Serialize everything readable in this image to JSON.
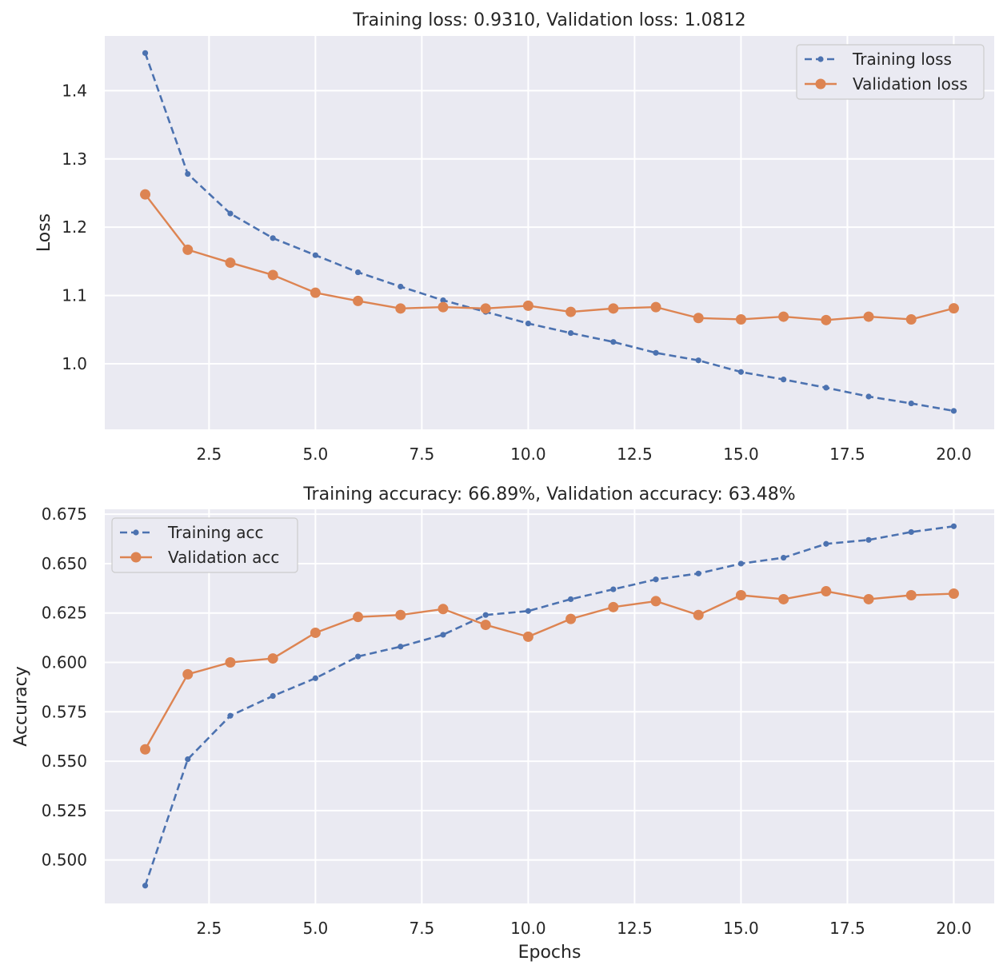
{
  "chart_data": [
    {
      "type": "line",
      "title": "Training loss: 0.9310, Validation loss: 1.0812",
      "xlabel": "",
      "ylabel": "Loss",
      "xlim": [
        0.05,
        20.95
      ],
      "ylim": [
        0.904,
        1.48
      ],
      "xticks": [
        2.5,
        5.0,
        7.5,
        10.0,
        12.5,
        15.0,
        17.5,
        20.0
      ],
      "xtick_labels": [
        "2.5",
        "5.0",
        "7.5",
        "10.0",
        "12.5",
        "15.0",
        "17.5",
        "20.0"
      ],
      "yticks": [
        1.0,
        1.1,
        1.2,
        1.3,
        1.4
      ],
      "ytick_labels": [
        "1.0",
        "1.1",
        "1.2",
        "1.3",
        "1.4"
      ],
      "grid": true,
      "legend_position": "top-right",
      "x": [
        1,
        2,
        3,
        4,
        5,
        6,
        7,
        8,
        9,
        10,
        11,
        12,
        13,
        14,
        15,
        16,
        17,
        18,
        19,
        20
      ],
      "series": [
        {
          "name": "Training loss",
          "style": "dashed-small-markers",
          "color": "#4c72b0",
          "values": [
            1.455,
            1.278,
            1.22,
            1.184,
            1.159,
            1.134,
            1.113,
            1.093,
            1.076,
            1.059,
            1.045,
            1.032,
            1.016,
            1.005,
            0.988,
            0.977,
            0.965,
            0.952,
            0.942,
            0.931
          ]
        },
        {
          "name": "Validation loss",
          "style": "solid-large-markers",
          "color": "#dd8452",
          "values": [
            1.248,
            1.167,
            1.148,
            1.13,
            1.104,
            1.092,
            1.081,
            1.083,
            1.081,
            1.085,
            1.076,
            1.081,
            1.083,
            1.067,
            1.065,
            1.069,
            1.064,
            1.069,
            1.065,
            1.0812
          ]
        }
      ]
    },
    {
      "type": "line",
      "title": "Training accuracy: 66.89%, Validation accuracy: 63.48%",
      "xlabel": "Epochs",
      "ylabel": "Accuracy",
      "xlim": [
        0.05,
        20.95
      ],
      "ylim": [
        0.478,
        0.6775
      ],
      "xticks": [
        2.5,
        5.0,
        7.5,
        10.0,
        12.5,
        15.0,
        17.5,
        20.0
      ],
      "xtick_labels": [
        "2.5",
        "5.0",
        "7.5",
        "10.0",
        "12.5",
        "15.0",
        "17.5",
        "20.0"
      ],
      "yticks": [
        0.5,
        0.525,
        0.55,
        0.575,
        0.6,
        0.625,
        0.65,
        0.675
      ],
      "ytick_labels": [
        "0.500",
        "0.525",
        "0.550",
        "0.575",
        "0.600",
        "0.625",
        "0.650",
        "0.675"
      ],
      "grid": true,
      "legend_position": "top-left",
      "x": [
        1,
        2,
        3,
        4,
        5,
        6,
        7,
        8,
        9,
        10,
        11,
        12,
        13,
        14,
        15,
        16,
        17,
        18,
        19,
        20
      ],
      "series": [
        {
          "name": "Training acc",
          "style": "dashed-small-markers",
          "color": "#4c72b0",
          "values": [
            0.487,
            0.551,
            0.573,
            0.583,
            0.592,
            0.603,
            0.608,
            0.614,
            0.624,
            0.626,
            0.632,
            0.637,
            0.642,
            0.645,
            0.65,
            0.653,
            0.66,
            0.662,
            0.666,
            0.6689
          ]
        },
        {
          "name": "Validation acc",
          "style": "solid-large-markers",
          "color": "#dd8452",
          "values": [
            0.556,
            0.594,
            0.6,
            0.602,
            0.615,
            0.623,
            0.624,
            0.627,
            0.619,
            0.613,
            0.622,
            0.628,
            0.631,
            0.624,
            0.634,
            0.632,
            0.636,
            0.632,
            0.634,
            0.6348
          ]
        }
      ]
    }
  ]
}
